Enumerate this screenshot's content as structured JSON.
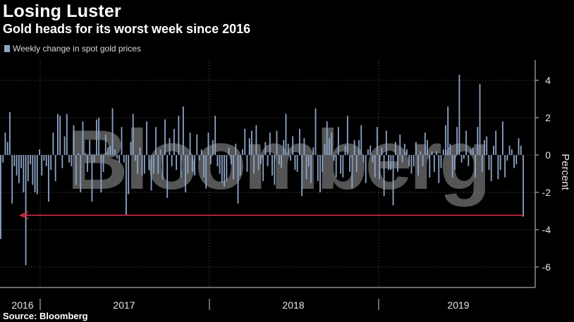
{
  "header": {
    "title": "Losing Luster",
    "subtitle": "Gold heads for its worst week since 2016"
  },
  "source": "Source: Bloomberg",
  "watermark": "Bloomberg",
  "colors": {
    "background": "#000000",
    "bar": "#8da5c8",
    "arrow": "#e8304a",
    "grid": "#5a5a5a"
  },
  "chart_data": {
    "type": "bar",
    "legend": [
      "Weekly change in spot gold prices"
    ],
    "ylabel": "Percent",
    "ylim": [
      -7.2,
      5.2
    ],
    "yticks": [
      4,
      2,
      0,
      -2,
      -4,
      -6
    ],
    "x_labels": [
      "2016",
      "2017",
      "2018",
      "2019"
    ],
    "grid": true,
    "legend_position": "top-left",
    "annotation": "red arrow from the latest week pointing back to mid-2016",
    "series": [
      {
        "name": "Weekly change in spot gold prices",
        "values": [
          -4.5,
          -0.4,
          1.2,
          0.7,
          2.3,
          -2.6,
          -0.6,
          -1.1,
          -1.5,
          -0.7,
          -2.0,
          -5.9,
          -1.4,
          -0.5,
          -1.6,
          -2.0,
          -2.1,
          0.3,
          -1.1,
          -0.3,
          -0.6,
          -2.5,
          -0.8,
          1.2,
          -1.4,
          2.2,
          2.1,
          -0.7,
          1.0,
          2.2,
          -0.4,
          -0.6,
          1.6,
          -1.6,
          0.1,
          -2.0,
          1.8,
          0.1,
          -0.9,
          0.8,
          -2.5,
          -0.4,
          1.9,
          2.0,
          -2.0,
          -0.9,
          1.1,
          0.4,
          0.5,
          2.5,
          0.3,
          -0.2,
          -0.4,
          1.5,
          -0.4,
          -3.2,
          -2.1,
          0.7,
          2.2,
          -0.3,
          -1.0,
          0.4,
          -1.1,
          -1.0,
          1.8,
          -0.8,
          -1.9,
          -1.0,
          1.5,
          -1.0,
          0.3,
          -1.3,
          1.9,
          -2.3,
          0.9,
          -0.6,
          1.4,
          -0.8,
          2.1,
          -1.2,
          2.6,
          -2.0,
          -1.0,
          1.2,
          -0.9,
          -1.1,
          1.1,
          -0.3,
          0.3,
          -1.2,
          -1.8,
          1.2,
          -0.5,
          0.8,
          2.1,
          -0.6,
          -1.0,
          -1.5,
          -1.7,
          -1.4,
          0.4,
          -0.5,
          -1.3,
          0.6,
          -2.6,
          -1.1,
          0.3,
          1.4,
          -0.9,
          0.9,
          1.3,
          -1.0,
          1.6,
          -0.8,
          -0.5,
          -1.4,
          0.7,
          -0.6,
          1.2,
          -1.1,
          -1.6,
          1.3,
          -0.5,
          -0.7,
          0.8,
          2.2,
          0.6,
          -0.3,
          1.0,
          -0.8,
          -0.9,
          1.4,
          -2.2,
          0.9,
          -1.3,
          -0.6,
          -1.5,
          0.4,
          2.5,
          -1.4,
          -2.0,
          -0.9,
          0.6,
          1.8,
          0.9,
          1.2,
          -0.3,
          -1.2,
          1.5,
          -1.0,
          -1.2,
          0.5,
          2.1,
          -0.9,
          -1.8,
          0.8,
          -0.9,
          0.8,
          1.6,
          -0.4,
          -1.5,
          0.3,
          0.5,
          -0.4,
          -1.2,
          1.5,
          -1.3,
          0.4,
          -2.2,
          1.3,
          -0.8,
          -0.8,
          -2.7,
          0.7,
          -0.9,
          1.1,
          -0.4,
          0.6,
          0.3,
          -0.6,
          -1.0,
          -0.6,
          0.7,
          -1.1,
          0.2,
          -0.6,
          1.2,
          0.8,
          -1.2,
          0.2,
          -0.9,
          0.2,
          -1.5,
          -0.7,
          0.3,
          1.6,
          2.6,
          0.6,
          -1.2,
          -0.8,
          1.5,
          4.3,
          -0.4,
          -0.2,
          1.3,
          -0.6,
          0.3,
          0.4,
          -1.2,
          1.5,
          3.8,
          -0.9,
          0.8,
          1.0,
          -0.8,
          -1.4,
          0.5,
          1.3,
          -1.3,
          -0.8,
          1.8,
          -1.2,
          -0.3,
          0.5,
          0.3,
          -0.7,
          -0.5,
          0.9,
          0.5,
          -3.3
        ]
      }
    ]
  }
}
